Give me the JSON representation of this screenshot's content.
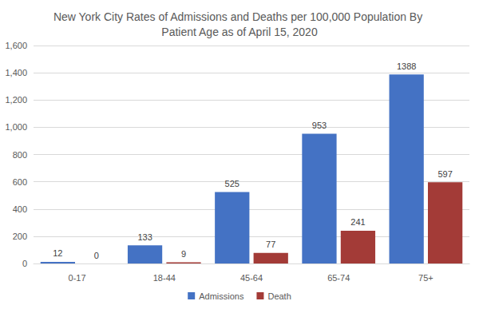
{
  "chart_data": {
    "type": "bar",
    "title": "New York City Rates of Admissions and Deaths per 100,000 Population By Patient Age as of April 15, 2020",
    "categories": [
      "0-17",
      "18-44",
      "45-64",
      "65-74",
      "75+"
    ],
    "series": [
      {
        "name": "Admissions",
        "color": "#4472c4",
        "values": [
          12,
          133,
          525,
          953,
          1388
        ]
      },
      {
        "name": "Death",
        "color": "#a33b37",
        "values": [
          0,
          9,
          77,
          241,
          597
        ]
      }
    ],
    "ylim": [
      0,
      1600
    ],
    "yticks": [
      0,
      200,
      400,
      600,
      800,
      {
        "value": 1000,
        "label": "1,000"
      },
      {
        "value": 1200,
        "label": "1,200"
      },
      {
        "value": 1400,
        "label": "1,400"
      },
      {
        "value": 1600,
        "label": "1,600"
      }
    ],
    "grid": true,
    "legend": "bottom",
    "data_labels": true
  }
}
